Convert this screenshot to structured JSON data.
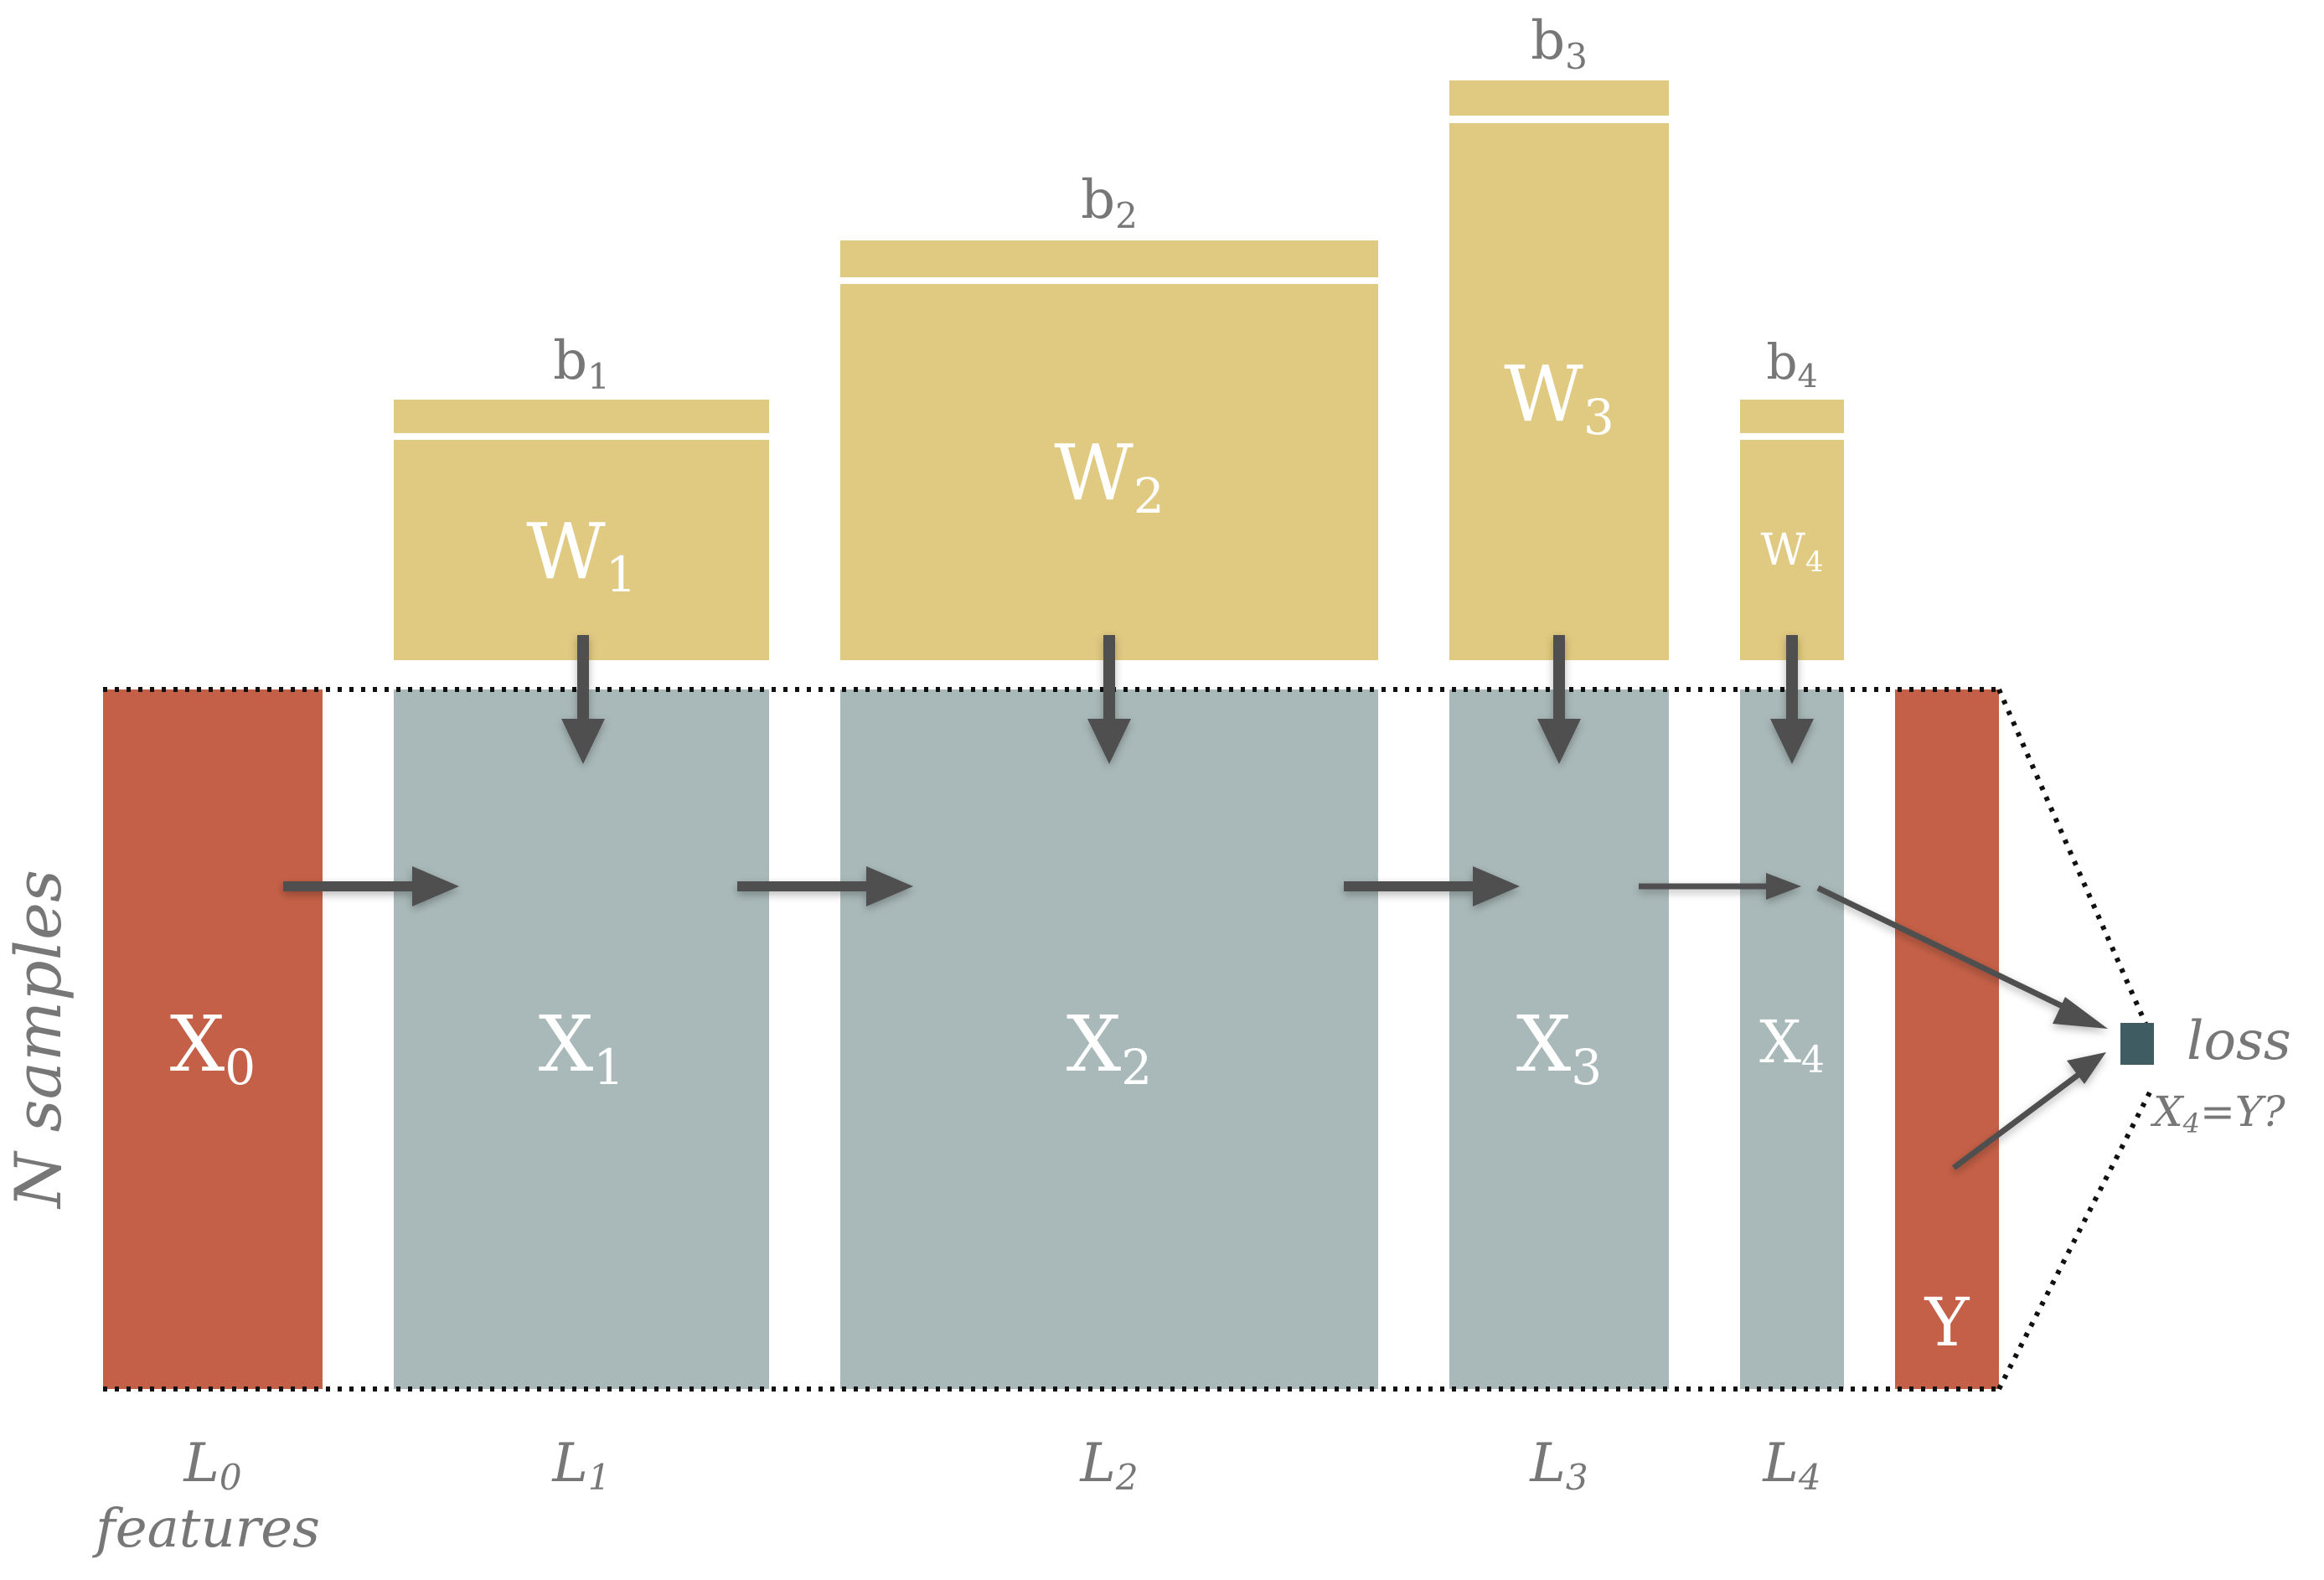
{
  "colors": {
    "weight": "#e0c981",
    "activation": "#a9b8b8",
    "input_output": "#c46047",
    "loss_box": "#3f5c63",
    "text_gray": "#777777",
    "text_white": "#ffffff",
    "arrow": "#4f4f4f",
    "dotted": "#111111"
  },
  "axis_label": "N samples",
  "input": {
    "name": "X",
    "sub": "0"
  },
  "target": {
    "name": "Y"
  },
  "layers": [
    {
      "x_name": "X",
      "x_sub": "1",
      "w_name": "W",
      "w_sub": "1",
      "b_name": "b",
      "b_sub": "1",
      "l_name": "L",
      "l_sub": "1"
    },
    {
      "x_name": "X",
      "x_sub": "2",
      "w_name": "W",
      "w_sub": "2",
      "b_name": "b",
      "b_sub": "2",
      "l_name": "L",
      "l_sub": "2"
    },
    {
      "x_name": "X",
      "x_sub": "3",
      "w_name": "W",
      "w_sub": "3",
      "b_name": "b",
      "b_sub": "3",
      "l_name": "L",
      "l_sub": "3"
    },
    {
      "x_name": "X",
      "x_sub": "4",
      "w_name": "W",
      "w_sub": "4",
      "b_name": "b",
      "b_sub": "4",
      "l_name": "L",
      "l_sub": "4"
    }
  ],
  "l0": {
    "name": "L",
    "sub": "0",
    "caption": "features"
  },
  "loss": {
    "label": "loss",
    "eq_a": "X",
    "eq_sub": "4",
    "eq_b": "=Y?"
  }
}
